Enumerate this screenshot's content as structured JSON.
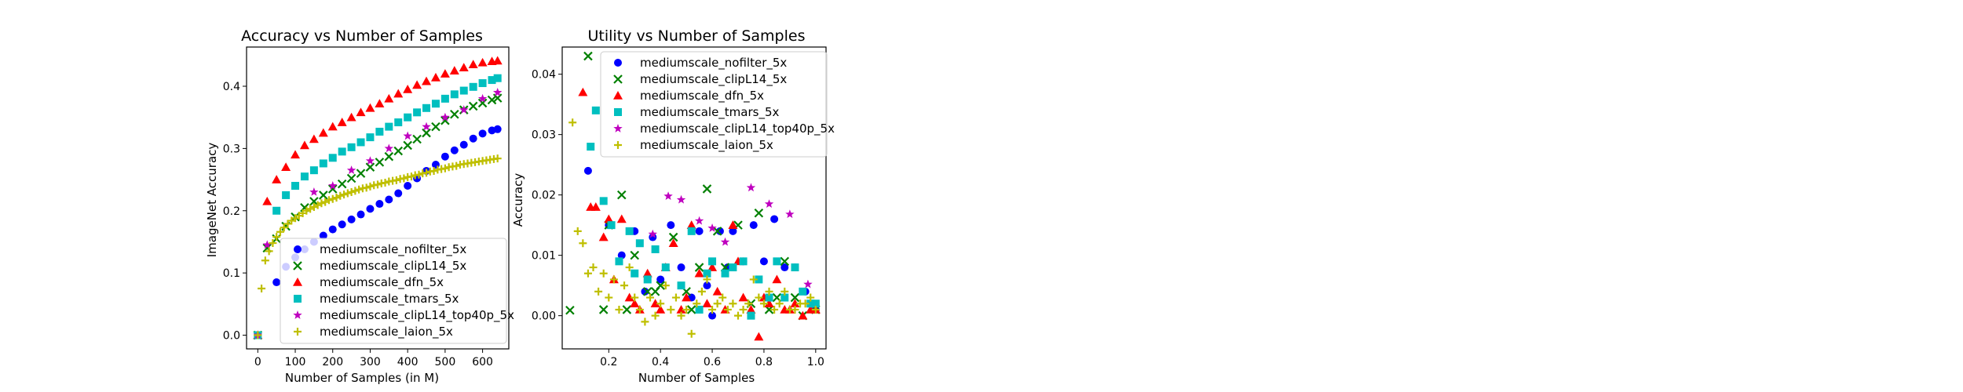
{
  "figure": {
    "colors": {
      "mediumscale_nofilter_5x": "#0000ff",
      "mediumscale_clipL14_5x": "#008000",
      "mediumscale_dfn_5x": "#ff0000",
      "mediumscale_tmars_5x": "#00bfbf",
      "mediumscale_clipL14_top40p_5x": "#bf00bf",
      "mediumscale_laion_5x": "#bfbf00"
    },
    "markers": {
      "mediumscale_nofilter_5x": "circle",
      "mediumscale_clipL14_5x": "x",
      "mediumscale_dfn_5x": "triangle",
      "mediumscale_tmars_5x": "square",
      "mediumscale_clipL14_top40p_5x": "star",
      "mediumscale_laion_5x": "plus"
    }
  },
  "chart_data": [
    {
      "type": "scatter",
      "title": "Accuracy vs Number of Samples",
      "xlabel": "Number of Samples (in M)",
      "ylabel": "ImageNet Accuracy",
      "xlim": [
        -30,
        670
      ],
      "ylim": [
        -0.022,
        0.463
      ],
      "xticks": [
        0,
        100,
        200,
        300,
        400,
        500,
        600
      ],
      "yticks": [
        0.0,
        0.1,
        0.2,
        0.3,
        0.4
      ],
      "xticklabels": [
        "0",
        "100",
        "200",
        "300",
        "400",
        "500",
        "600"
      ],
      "yticklabels": [
        "0.0",
        "0.1",
        "0.2",
        "0.3",
        "0.4"
      ],
      "grid": false,
      "legend": "lower-right",
      "series": [
        {
          "name": "mediumscale_nofilter_5x",
          "x": [
            0,
            50,
            75,
            100,
            125,
            150,
            175,
            200,
            225,
            250,
            275,
            300,
            325,
            350,
            375,
            400,
            425,
            450,
            475,
            500,
            525,
            550,
            575,
            600,
            625,
            640
          ],
          "y": [
            0.0,
            0.085,
            0.11,
            0.125,
            0.138,
            0.15,
            0.16,
            0.17,
            0.178,
            0.186,
            0.194,
            0.203,
            0.211,
            0.218,
            0.228,
            0.24,
            0.252,
            0.264,
            0.274,
            0.287,
            0.297,
            0.306,
            0.316,
            0.324,
            0.329,
            0.331
          ]
        },
        {
          "name": "mediumscale_clipL14_5x",
          "x": [
            0,
            25,
            50,
            75,
            100,
            125,
            150,
            175,
            200,
            225,
            250,
            275,
            300,
            325,
            350,
            375,
            400,
            425,
            450,
            475,
            500,
            525,
            550,
            575,
            600,
            625,
            640
          ],
          "y": [
            0.0,
            0.14,
            0.155,
            0.175,
            0.19,
            0.205,
            0.215,
            0.225,
            0.235,
            0.243,
            0.252,
            0.26,
            0.27,
            0.278,
            0.287,
            0.296,
            0.305,
            0.315,
            0.325,
            0.335,
            0.345,
            0.355,
            0.362,
            0.368,
            0.373,
            0.378,
            0.381
          ]
        },
        {
          "name": "mediumscale_dfn_5x",
          "x": [
            0,
            25,
            50,
            75,
            100,
            125,
            150,
            175,
            200,
            225,
            250,
            275,
            300,
            325,
            350,
            375,
            400,
            425,
            450,
            475,
            500,
            525,
            550,
            575,
            600,
            625,
            640
          ],
          "y": [
            0.0,
            0.215,
            0.25,
            0.27,
            0.29,
            0.305,
            0.315,
            0.325,
            0.335,
            0.342,
            0.35,
            0.358,
            0.365,
            0.372,
            0.38,
            0.388,
            0.395,
            0.402,
            0.408,
            0.414,
            0.42,
            0.425,
            0.43,
            0.435,
            0.438,
            0.44,
            0.441
          ]
        },
        {
          "name": "mediumscale_tmars_5x",
          "x": [
            0,
            50,
            75,
            100,
            125,
            150,
            175,
            200,
            225,
            250,
            275,
            300,
            325,
            350,
            375,
            400,
            425,
            450,
            475,
            500,
            525,
            550,
            575,
            600,
            625,
            640
          ],
          "y": [
            0.0,
            0.2,
            0.225,
            0.24,
            0.255,
            0.265,
            0.276,
            0.285,
            0.295,
            0.302,
            0.31,
            0.318,
            0.327,
            0.335,
            0.342,
            0.35,
            0.358,
            0.365,
            0.372,
            0.38,
            0.387,
            0.393,
            0.399,
            0.405,
            0.41,
            0.413
          ]
        },
        {
          "name": "mediumscale_clipL14_top40p_5x",
          "x": [
            0,
            25,
            150,
            200,
            250,
            300,
            350,
            400,
            450,
            500,
            550,
            600,
            640
          ],
          "y": [
            0.0,
            0.145,
            0.23,
            0.24,
            0.265,
            0.28,
            0.3,
            0.32,
            0.335,
            0.35,
            0.362,
            0.38,
            0.39
          ]
        },
        {
          "name": "mediumscale_laion_5x",
          "x": [
            0,
            10,
            20,
            30,
            40,
            50,
            60,
            70,
            80,
            90,
            100,
            110,
            120,
            130,
            140,
            150,
            160,
            170,
            180,
            190,
            200,
            210,
            220,
            230,
            240,
            250,
            260,
            270,
            280,
            290,
            300,
            310,
            320,
            330,
            340,
            350,
            360,
            370,
            380,
            390,
            400,
            410,
            420,
            430,
            440,
            450,
            460,
            470,
            480,
            490,
            500,
            510,
            520,
            530,
            540,
            550,
            560,
            570,
            580,
            590,
            600,
            610,
            620,
            630,
            640
          ],
          "y": [
            0.0,
            0.075,
            0.12,
            0.135,
            0.148,
            0.158,
            0.166,
            0.173,
            0.179,
            0.184,
            0.188,
            0.192,
            0.196,
            0.2,
            0.203,
            0.206,
            0.209,
            0.212,
            0.214,
            0.217,
            0.219,
            0.221,
            0.224,
            0.226,
            0.228,
            0.23,
            0.232,
            0.234,
            0.236,
            0.237,
            0.239,
            0.241,
            0.242,
            0.244,
            0.245,
            0.247,
            0.248,
            0.249,
            0.251,
            0.252,
            0.254,
            0.255,
            0.257,
            0.258,
            0.26,
            0.261,
            0.263,
            0.264,
            0.266,
            0.267,
            0.268,
            0.27,
            0.271,
            0.272,
            0.274,
            0.275,
            0.276,
            0.277,
            0.278,
            0.279,
            0.28,
            0.281,
            0.282,
            0.283,
            0.284
          ]
        }
      ]
    },
    {
      "type": "scatter",
      "title": "Utility vs Number of Samples",
      "xlabel": "Number of Samples",
      "ylabel": "Accuracy",
      "xlim": [
        0.02,
        1.04
      ],
      "ylim": [
        -0.0055,
        0.0445
      ],
      "xticks": [
        0.2,
        0.4,
        0.6,
        0.8,
        1.0
      ],
      "yticks": [
        0.0,
        0.01,
        0.02,
        0.03,
        0.04
      ],
      "xticklabels": [
        "0.2",
        "0.4",
        "0.6",
        "0.8",
        "1.0"
      ],
      "yticklabels": [
        "0.00",
        "0.01",
        "0.02",
        "0.03",
        "0.04"
      ],
      "grid": false,
      "legend": "top-right",
      "series": [
        {
          "name": "mediumscale_nofilter_5x",
          "x": [
            0.12,
            0.2,
            0.25,
            0.3,
            0.34,
            0.37,
            0.4,
            0.44,
            0.48,
            0.52,
            0.55,
            0.58,
            0.6,
            0.63,
            0.66,
            0.68,
            0.72,
            0.76,
            0.8,
            0.84,
            0.88,
            0.92,
            0.96,
            1.0
          ],
          "y": [
            0.024,
            0.015,
            0.01,
            0.014,
            0.004,
            0.013,
            0.006,
            0.015,
            0.008,
            0.003,
            0.014,
            0.005,
            0.0,
            0.014,
            0.008,
            0.014,
            0.009,
            0.015,
            0.009,
            0.016,
            0.008,
            0.008,
            0.004,
            0.001
          ]
        },
        {
          "name": "mediumscale_clipL14_5x",
          "x": [
            0.05,
            0.12,
            0.18,
            0.2,
            0.25,
            0.27,
            0.3,
            0.35,
            0.38,
            0.4,
            0.45,
            0.5,
            0.52,
            0.55,
            0.58,
            0.62,
            0.65,
            0.7,
            0.75,
            0.78,
            0.82,
            0.85,
            0.88,
            0.92,
            0.95,
            1.0
          ],
          "y": [
            0.0009,
            0.043,
            0.001,
            0.015,
            0.02,
            0.001,
            0.01,
            0.004,
            0.004,
            0.005,
            0.013,
            0.004,
            0.001,
            0.008,
            0.021,
            0.014,
            0.008,
            0.015,
            0.002,
            0.017,
            0.001,
            0.003,
            0.009,
            0.003,
            0.0,
            0.001
          ]
        },
        {
          "name": "mediumscale_dfn_5x",
          "x": [
            0.1,
            0.13,
            0.15,
            0.18,
            0.2,
            0.22,
            0.25,
            0.28,
            0.3,
            0.32,
            0.35,
            0.38,
            0.4,
            0.42,
            0.45,
            0.48,
            0.5,
            0.52,
            0.55,
            0.58,
            0.6,
            0.62,
            0.65,
            0.68,
            0.7,
            0.72,
            0.75,
            0.78,
            0.8,
            0.82,
            0.85,
            0.88,
            0.9,
            0.92,
            0.95,
            0.98,
            1.0
          ],
          "y": [
            0.037,
            0.018,
            0.018,
            0.013,
            0.016,
            0.006,
            0.016,
            0.003,
            0.002,
            0.001,
            0.007,
            0.002,
            0.001,
            0.008,
            0.012,
            0.001,
            0.003,
            0.015,
            0.007,
            0.002,
            0.008,
            0.004,
            0.001,
            0.015,
            0.009,
            0.003,
            0.001,
            -0.0035,
            0.003,
            0.002,
            0.006,
            0.001,
            0.001,
            0.002,
            0.0,
            0.001,
            0.001
          ]
        },
        {
          "name": "mediumscale_tmars_5x",
          "x": [
            0.13,
            0.15,
            0.18,
            0.21,
            0.24,
            0.28,
            0.3,
            0.32,
            0.35,
            0.38,
            0.42,
            0.48,
            0.52,
            0.55,
            0.58,
            0.6,
            0.65,
            0.68,
            0.72,
            0.75,
            0.78,
            0.82,
            0.85,
            0.88,
            0.92,
            0.95,
            0.98,
            1.0
          ],
          "y": [
            0.028,
            0.034,
            0.019,
            0.015,
            0.009,
            0.014,
            0.007,
            0.012,
            0.006,
            0.011,
            0.008,
            0.005,
            0.014,
            0.001,
            0.007,
            0.009,
            0.007,
            0.008,
            0.009,
            0.0,
            0.006,
            0.003,
            0.009,
            0.003,
            0.008,
            0.004,
            0.002,
            0.002
          ]
        },
        {
          "name": "mediumscale_clipL14_top40p_5x",
          "x": [
            0.37,
            0.43,
            0.48,
            0.55,
            0.6,
            0.65,
            0.75,
            0.82,
            0.9,
            0.97
          ],
          "y": [
            0.0135,
            0.0198,
            0.0192,
            0.0157,
            0.0145,
            0.0122,
            0.0212,
            0.0185,
            0.0168,
            0.0052
          ]
        },
        {
          "name": "mediumscale_laion_5x",
          "x": [
            0.06,
            0.08,
            0.1,
            0.12,
            0.14,
            0.16,
            0.18,
            0.2,
            0.22,
            0.24,
            0.26,
            0.28,
            0.3,
            0.32,
            0.34,
            0.36,
            0.38,
            0.4,
            0.42,
            0.44,
            0.46,
            0.48,
            0.5,
            0.52,
            0.54,
            0.56,
            0.58,
            0.6,
            0.62,
            0.64,
            0.66,
            0.68,
            0.7,
            0.72,
            0.74,
            0.76,
            0.78,
            0.8,
            0.82,
            0.84,
            0.86,
            0.88,
            0.9,
            0.92,
            0.94,
            0.96,
            0.98,
            1.0
          ],
          "y": [
            0.032,
            0.014,
            0.012,
            0.007,
            0.008,
            0.004,
            0.007,
            0.003,
            0.006,
            0.001,
            0.005,
            0.008,
            0.003,
            0.001,
            -0.001,
            0.003,
            0.0,
            0.002,
            0.005,
            0.001,
            0.003,
            0.0,
            0.001,
            -0.003,
            0.002,
            0.004,
            0.006,
            0.001,
            0.002,
            0.003,
            0.001,
            0.002,
            0.0,
            0.001,
            0.002,
            0.006,
            0.003,
            0.002,
            0.004,
            0.001,
            0.002,
            0.004,
            0.001,
            0.001,
            0.002,
            0.002,
            0.003,
            0.001
          ]
        }
      ]
    }
  ]
}
